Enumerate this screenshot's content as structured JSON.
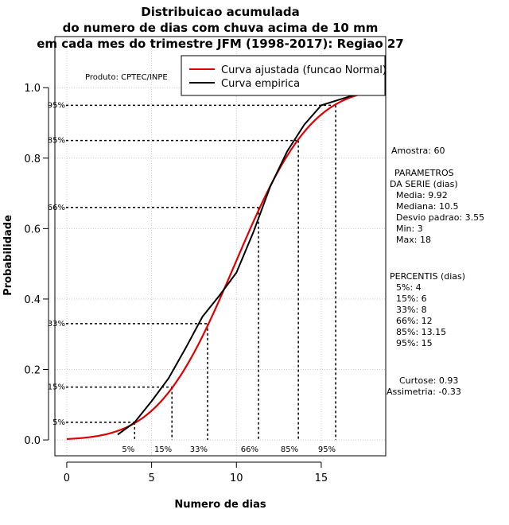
{
  "chart_data": {
    "type": "line",
    "title_lines": [
      "Distribuicao acumulada",
      "do numero de dias com chuva acima de 10 mm",
      "em cada mes do trimestre JFM (1998-2017): Regiao 27"
    ],
    "xlabel": "Numero de dias",
    "ylabel": "Probabilidade",
    "xlim": [
      -0.7,
      18.8
    ],
    "ylim": [
      -0.045,
      1.145
    ],
    "xticks": [
      "0",
      "5",
      "10",
      "15"
    ],
    "yticks": [
      "0.0",
      "0.2",
      "0.4",
      "0.6",
      "0.8",
      "1.0"
    ],
    "grid": true,
    "producer": "Produto: CPTEC/INPE",
    "legend": {
      "position": "top-right",
      "entries": [
        {
          "label": "Curva ajustada (funcao Normal)",
          "color": "#e00000"
        },
        {
          "label": "Curva empirica",
          "color": "#000000"
        }
      ]
    },
    "normal_fit": {
      "name": "Curva ajustada (funcao Normal)",
      "mean": 9.92,
      "sd": 3.55,
      "x_range": [
        0,
        18
      ],
      "color": "#e00000"
    },
    "empirical": {
      "name": "Curva empirica",
      "color": "#000000",
      "x": [
        3,
        4,
        5,
        6,
        7,
        8,
        9,
        10,
        11,
        12,
        13,
        14,
        15,
        16,
        17,
        18
      ],
      "y": [
        0.015,
        0.05,
        0.11,
        0.175,
        0.26,
        0.35,
        0.41,
        0.475,
        0.59,
        0.72,
        0.82,
        0.895,
        0.95,
        0.965,
        0.98,
        0.998
      ]
    },
    "percentile_lines": [
      {
        "p": 0.05,
        "x": 4,
        "ylabel": "5%",
        "xlabel": "5%"
      },
      {
        "p": 0.15,
        "x": 6.2,
        "ylabel": "15%",
        "xlabel": "15%"
      },
      {
        "p": 0.33,
        "x": 8.3,
        "ylabel": "33%",
        "xlabel": "33%"
      },
      {
        "p": 0.66,
        "x": 11.3,
        "ylabel": "66%",
        "xlabel": "66%"
      },
      {
        "p": 0.85,
        "x": 13.65,
        "ylabel": "85%",
        "xlabel": "85%"
      },
      {
        "p": 0.95,
        "x": 15.85,
        "ylabel": "95%",
        "xlabel": "95%"
      }
    ],
    "side_panel": [
      "Amostra: 60",
      "",
      "PARAMETROS",
      "DA SERIE (dias)",
      "Media: 9.92",
      "Mediana: 10.5",
      "Desvio padrao: 3.55",
      "Min: 3",
      "Max: 18",
      "",
      "",
      "PERCENTIS (dias)",
      "5%: 4",
      "15%: 6",
      "33%: 8",
      "66%: 12",
      "85%: 13.15",
      "95%: 15",
      "",
      "",
      "Curtose: 0.93",
      "Assimetria: -0.33"
    ]
  }
}
